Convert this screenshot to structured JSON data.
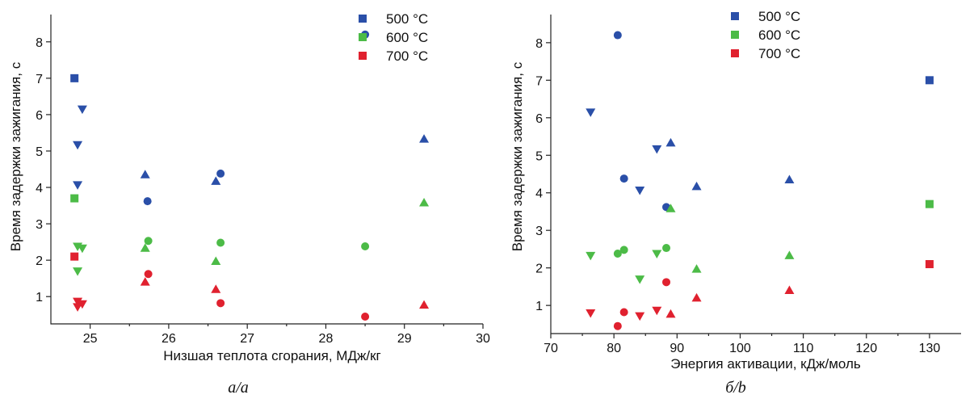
{
  "colors": {
    "500": "#2a4fa8",
    "600": "#4cbb47",
    "700": "#e0212f"
  },
  "chart_data": [
    {
      "type": "scatter",
      "caption": "a/a",
      "xlabel": "Низшая теплота сгорания, МДж/кг",
      "ylabel": "Время задержки зажигания, с",
      "xlim": [
        24.5,
        30
      ],
      "ylim": [
        0.25,
        8.75
      ],
      "xticks": [
        25,
        26,
        27,
        28,
        29,
        30
      ],
      "yticks": [
        1,
        2,
        3,
        4,
        5,
        6,
        7,
        8
      ],
      "grid": false,
      "legend_position": "top-right",
      "series": [
        {
          "name": "500 °C",
          "color_key": "500",
          "points": [
            {
              "x": 24.8,
              "y": 7.0,
              "marker": "square"
            },
            {
              "x": 24.9,
              "y": 6.15,
              "marker": "triangle-down"
            },
            {
              "x": 24.84,
              "y": 5.17,
              "marker": "triangle-down"
            },
            {
              "x": 24.84,
              "y": 4.07,
              "marker": "triangle-down"
            },
            {
              "x": 25.7,
              "y": 4.35,
              "marker": "triangle-up"
            },
            {
              "x": 25.73,
              "y": 3.62,
              "marker": "circle"
            },
            {
              "x": 26.6,
              "y": 4.17,
              "marker": "triangle-up"
            },
            {
              "x": 26.66,
              "y": 4.38,
              "marker": "circle"
            },
            {
              "x": 28.5,
              "y": 8.2,
              "marker": "circle"
            },
            {
              "x": 29.25,
              "y": 5.33,
              "marker": "triangle-up"
            }
          ]
        },
        {
          "name": "600 °C",
          "color_key": "600",
          "points": [
            {
              "x": 24.8,
              "y": 3.7,
              "marker": "square"
            },
            {
              "x": 24.84,
              "y": 2.38,
              "marker": "triangle-down"
            },
            {
              "x": 24.9,
              "y": 2.33,
              "marker": "triangle-down"
            },
            {
              "x": 24.84,
              "y": 1.7,
              "marker": "triangle-down"
            },
            {
              "x": 25.7,
              "y": 2.33,
              "marker": "triangle-up"
            },
            {
              "x": 25.74,
              "y": 2.53,
              "marker": "circle"
            },
            {
              "x": 26.6,
              "y": 1.97,
              "marker": "triangle-up"
            },
            {
              "x": 26.66,
              "y": 2.48,
              "marker": "circle"
            },
            {
              "x": 28.5,
              "y": 2.38,
              "marker": "circle"
            },
            {
              "x": 29.25,
              "y": 3.58,
              "marker": "triangle-up"
            }
          ]
        },
        {
          "name": "700 °C",
          "color_key": "700",
          "points": [
            {
              "x": 24.8,
              "y": 2.1,
              "marker": "square"
            },
            {
              "x": 24.84,
              "y": 0.87,
              "marker": "triangle-down"
            },
            {
              "x": 24.9,
              "y": 0.8,
              "marker": "triangle-down"
            },
            {
              "x": 24.84,
              "y": 0.72,
              "marker": "triangle-down"
            },
            {
              "x": 25.7,
              "y": 1.4,
              "marker": "triangle-up"
            },
            {
              "x": 25.74,
              "y": 1.62,
              "marker": "circle"
            },
            {
              "x": 26.6,
              "y": 1.2,
              "marker": "triangle-up"
            },
            {
              "x": 26.66,
              "y": 0.82,
              "marker": "circle"
            },
            {
              "x": 28.5,
              "y": 0.45,
              "marker": "circle"
            },
            {
              "x": 29.25,
              "y": 0.77,
              "marker": "triangle-up"
            }
          ]
        }
      ]
    },
    {
      "type": "scatter",
      "caption": "б/b",
      "xlabel": "Энергия активации, кДж/моль",
      "ylabel": "Время задержки зажигания, с",
      "xlim": [
        70,
        135
      ],
      "ylim": [
        0.25,
        8.75
      ],
      "xticks": [
        70,
        80,
        90,
        100,
        110,
        120,
        130
      ],
      "yticks": [
        1,
        2,
        3,
        4,
        5,
        6,
        7,
        8
      ],
      "grid": false,
      "legend_position": "top-center",
      "series": [
        {
          "name": "500 °C",
          "color_key": "500",
          "points": [
            {
              "x": 130,
              "y": 7.0,
              "marker": "square"
            },
            {
              "x": 76.3,
              "y": 6.15,
              "marker": "triangle-down"
            },
            {
              "x": 86.8,
              "y": 5.17,
              "marker": "triangle-down"
            },
            {
              "x": 84.1,
              "y": 4.07,
              "marker": "triangle-down"
            },
            {
              "x": 107.8,
              "y": 4.35,
              "marker": "triangle-up"
            },
            {
              "x": 88.3,
              "y": 3.62,
              "marker": "circle"
            },
            {
              "x": 93.1,
              "y": 4.17,
              "marker": "triangle-up"
            },
            {
              "x": 81.6,
              "y": 4.38,
              "marker": "circle"
            },
            {
              "x": 80.6,
              "y": 8.2,
              "marker": "circle"
            },
            {
              "x": 89.0,
              "y": 5.33,
              "marker": "triangle-up"
            }
          ]
        },
        {
          "name": "600 °C",
          "color_key": "600",
          "points": [
            {
              "x": 130,
              "y": 3.7,
              "marker": "square"
            },
            {
              "x": 76.3,
              "y": 2.33,
              "marker": "triangle-down"
            },
            {
              "x": 86.8,
              "y": 2.38,
              "marker": "triangle-down"
            },
            {
              "x": 84.1,
              "y": 1.7,
              "marker": "triangle-down"
            },
            {
              "x": 107.8,
              "y": 2.33,
              "marker": "triangle-up"
            },
            {
              "x": 88.3,
              "y": 2.53,
              "marker": "circle"
            },
            {
              "x": 93.1,
              "y": 1.97,
              "marker": "triangle-up"
            },
            {
              "x": 81.6,
              "y": 2.48,
              "marker": "circle"
            },
            {
              "x": 80.6,
              "y": 2.38,
              "marker": "circle"
            },
            {
              "x": 89.0,
              "y": 3.58,
              "marker": "triangle-up"
            }
          ]
        },
        {
          "name": "700 °C",
          "color_key": "700",
          "points": [
            {
              "x": 130,
              "y": 2.1,
              "marker": "square"
            },
            {
              "x": 76.3,
              "y": 0.8,
              "marker": "triangle-down"
            },
            {
              "x": 86.8,
              "y": 0.87,
              "marker": "triangle-down"
            },
            {
              "x": 84.1,
              "y": 0.72,
              "marker": "triangle-down"
            },
            {
              "x": 107.8,
              "y": 1.4,
              "marker": "triangle-up"
            },
            {
              "x": 88.3,
              "y": 1.62,
              "marker": "circle"
            },
            {
              "x": 93.1,
              "y": 1.2,
              "marker": "triangle-up"
            },
            {
              "x": 81.6,
              "y": 0.82,
              "marker": "circle"
            },
            {
              "x": 80.6,
              "y": 0.45,
              "marker": "circle"
            },
            {
              "x": 89.0,
              "y": 0.77,
              "marker": "triangle-up"
            }
          ]
        }
      ]
    }
  ]
}
